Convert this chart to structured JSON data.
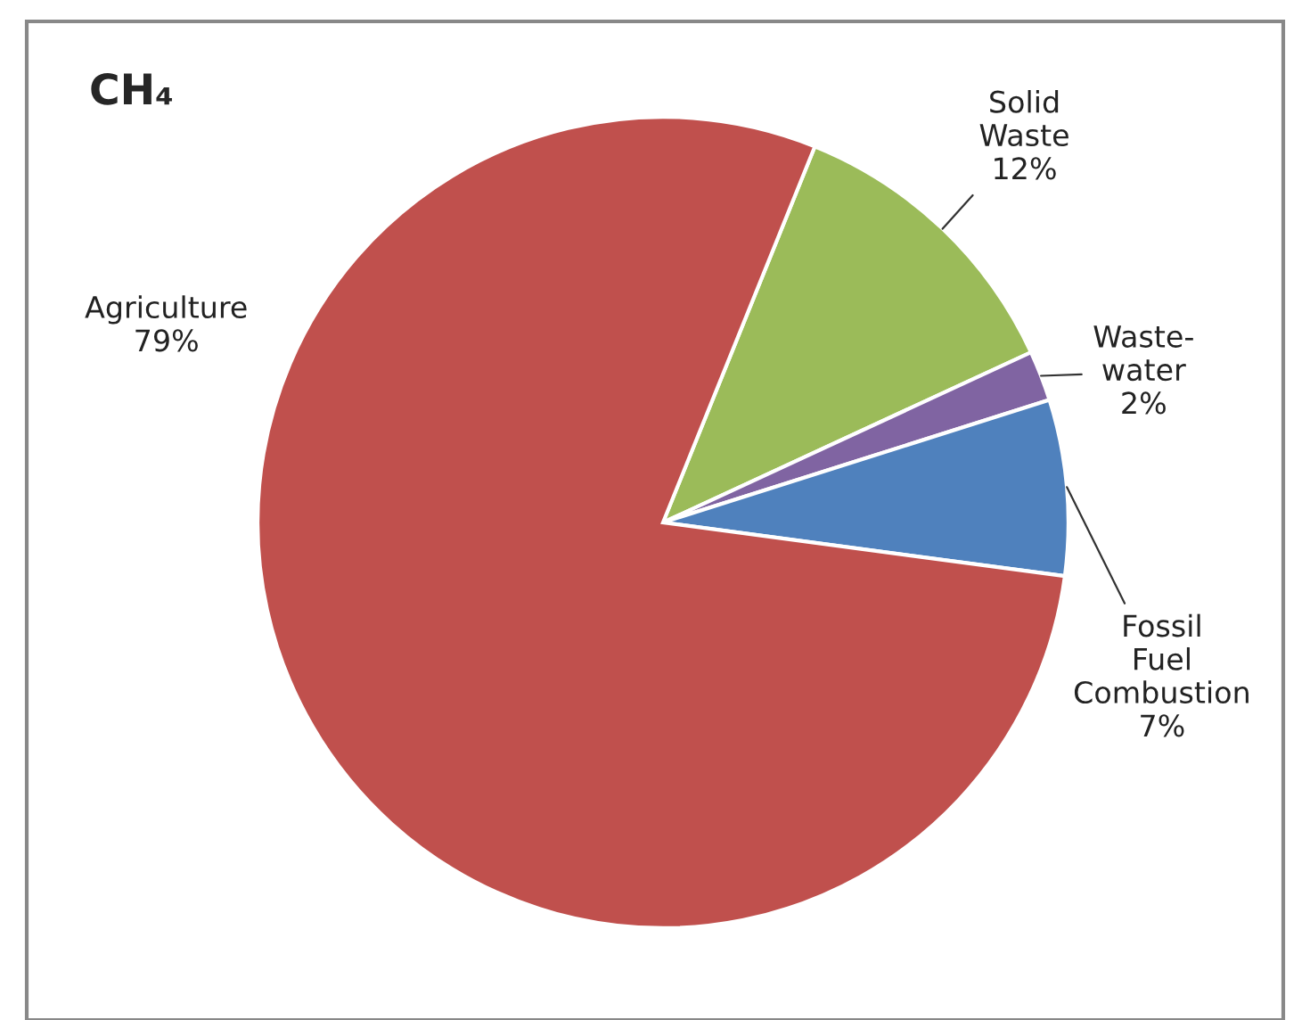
{
  "chart_data": {
    "type": "pie",
    "title": "CH₄",
    "categories": [
      "Solid Waste",
      "Waste-water",
      "Fossil Fuel Combustion",
      "Agriculture"
    ],
    "values": [
      12,
      2,
      7,
      79
    ],
    "value_labels": [
      "12%",
      "2%",
      "7%",
      "79%"
    ],
    "colors": [
      "#9bbb59",
      "#8064a2",
      "#4f81bd",
      "#c0504d"
    ],
    "legend": false
  }
}
